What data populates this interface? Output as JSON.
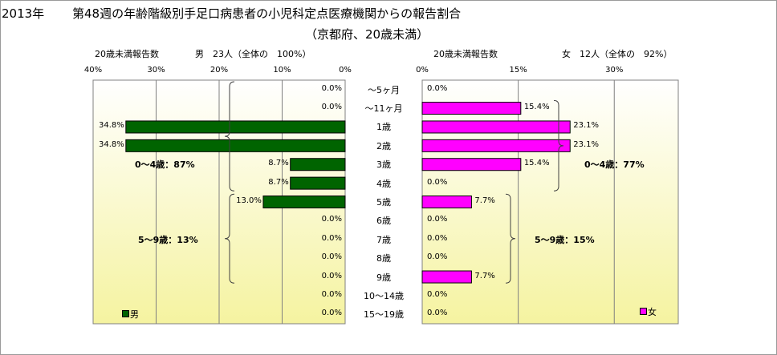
{
  "header": {
    "year": "2013年",
    "title": "第48週の年齢階級別手足口病患者の小児科定点医療機関からの報告割合",
    "subtitle": "（京都府、20歳未満）"
  },
  "colors": {
    "male": "#006400",
    "female": "#ff00ff",
    "background_top": "#ffffff",
    "background_bottom": "#f5f3a0"
  },
  "chart_data": {
    "type": "bar",
    "categories": [
      "～5ヶ月",
      "～11ヶ月",
      "1歳",
      "2歳",
      "3歳",
      "4歳",
      "5歳",
      "6歳",
      "7歳",
      "8歳",
      "9歳",
      "10～14歳",
      "15～19歳"
    ],
    "male": {
      "header_left": "20歳未満報告数",
      "header_right": "男　23人（全体の　100%）",
      "legend": "男",
      "ticks": [
        "40%",
        "30%",
        "20%",
        "10%",
        "0%"
      ],
      "xlim": [
        0,
        40
      ],
      "values": [
        0.0,
        0.0,
        34.8,
        34.8,
        8.7,
        8.7,
        13.0,
        0.0,
        0.0,
        0.0,
        0.0,
        0.0,
        0.0
      ],
      "labels": [
        "0.0%",
        "0.0%",
        "34.8%",
        "34.8%",
        "8.7%",
        "8.7%",
        "13.0%",
        "0.0%",
        "0.0%",
        "0.0%",
        "0.0%",
        "0.0%",
        "0.0%"
      ],
      "brace_labels": [
        "0～4歳：87%",
        "5～9歳：13%"
      ]
    },
    "female": {
      "header_left": "20歳未満報告数",
      "header_right": "女　12人（全体の　92%）",
      "legend": "女",
      "ticks": [
        "0%",
        "15%",
        "30%"
      ],
      "xlim": [
        0,
        40
      ],
      "values": [
        0.0,
        15.4,
        23.1,
        23.1,
        15.4,
        0.0,
        7.7,
        0.0,
        0.0,
        0.0,
        7.7,
        0.0,
        0.0
      ],
      "labels": [
        "0.0%",
        "15.4%",
        "23.1%",
        "23.1%",
        "15.4%",
        "0.0%",
        "7.7%",
        "0.0%",
        "0.0%",
        "0.0%",
        "7.7%",
        "0.0%",
        "0.0%"
      ],
      "brace_labels": [
        "0～4歳：77%",
        "5～9歳：15%"
      ]
    }
  }
}
